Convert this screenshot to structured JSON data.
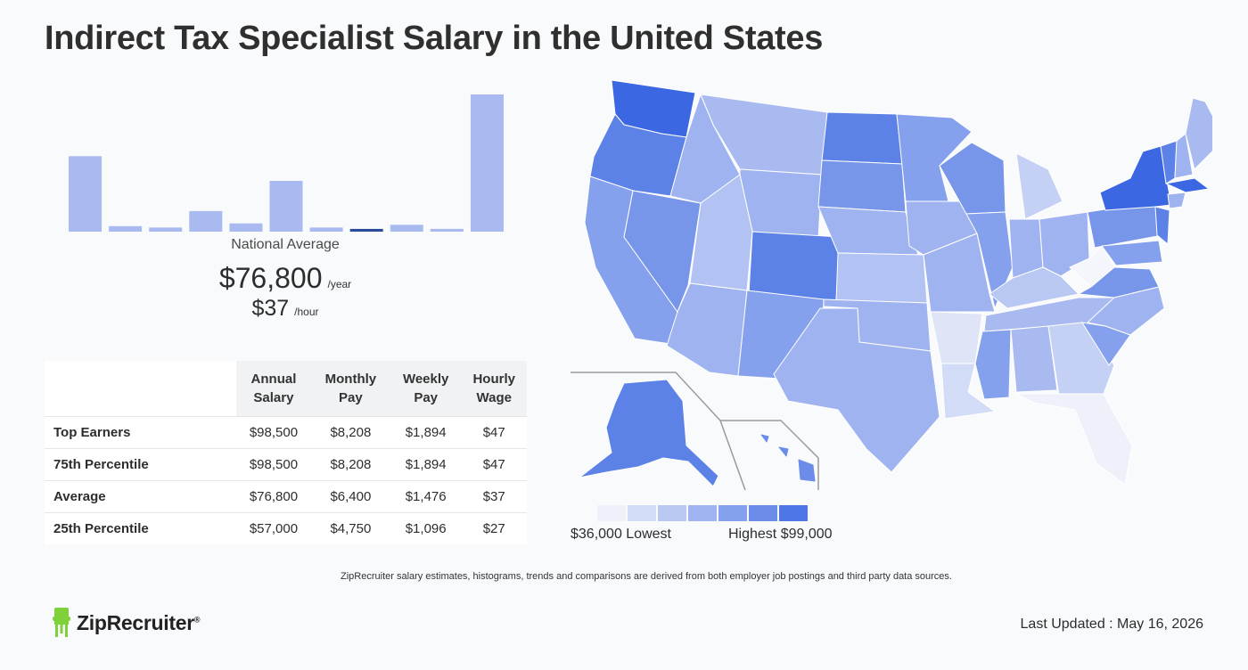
{
  "title": "Indirect Tax Specialist Salary in the United States",
  "chart_data": [
    {
      "type": "bar",
      "values": [
        55,
        4,
        3,
        15,
        6,
        37,
        3,
        2,
        5,
        2,
        100
      ],
      "highlight_index": 7,
      "colors": {
        "bar": "#a8baf0",
        "highlight": "#2b4a9a"
      }
    },
    {
      "type": "heatmap",
      "legend": {
        "low_label": "$36,000 Lowest",
        "high_label": "Highest $99,000",
        "colors": [
          "#eef1fa",
          "#d3dcf6",
          "#b9c7f3",
          "#9fb3f0",
          "#85a0ec",
          "#6b8ce9",
          "#4f76e6"
        ]
      }
    }
  ],
  "summary": {
    "nat_avg_label": "National Average",
    "annual_value": "$76,800",
    "annual_unit": "/year",
    "hourly_value": "$37",
    "hourly_unit": "/hour"
  },
  "table": {
    "headers": [
      "Annual\nSalary",
      "Monthly\nPay",
      "Weekly\nPay",
      "Hourly\nWage"
    ],
    "rows": [
      {
        "label": "Top Earners",
        "cells": [
          "$98,500",
          "$8,208",
          "$1,894",
          "$47"
        ]
      },
      {
        "label": "75th Percentile",
        "cells": [
          "$98,500",
          "$8,208",
          "$1,894",
          "$47"
        ]
      },
      {
        "label": "Average",
        "cells": [
          "$76,800",
          "$6,400",
          "$1,476",
          "$37"
        ]
      },
      {
        "label": "25th Percentile",
        "cells": [
          "$57,000",
          "$4,750",
          "$1,096",
          "$27"
        ]
      }
    ]
  },
  "footnote": "ZipRecruiter salary estimates, histograms, trends and comparisons are derived from both employer job postings and third party data sources.",
  "logo": {
    "text": "ZipRecruiter",
    "reg": "®"
  },
  "updated": "Last Updated : May 16, 2026"
}
